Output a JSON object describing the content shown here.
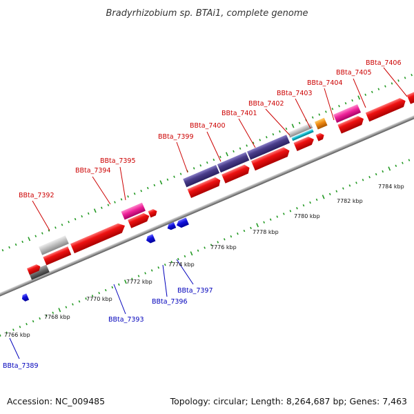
{
  "title": "Bradyrhizobium sp. BTAi1, complete genome",
  "footer": {
    "accession": "Accession: NC_009485",
    "summary": "Topology: circular; Length: 8,264,687 bp; Genes: 7,463"
  },
  "colors": {
    "forward_cds": "#ee1111",
    "reverse_cds": "#1111dd",
    "rna_purple": "#4a3d8a",
    "pseudo_gray": "#b8b8b8",
    "pink": "#ee2299",
    "orange": "#ee8811",
    "cyan": "#11bbcc",
    "label_forward": "#cc0000",
    "label_reverse": "#0000bb",
    "tick_green": "#229922",
    "axis_gray": "#999999"
  },
  "kbp_labels": [
    "7766 kbp",
    "7768 kbp",
    "7770 kbp",
    "7772 kbp",
    "7774 kbp",
    "7776 kbp",
    "7778 kbp",
    "7780 kbp",
    "7782 kbp",
    "7784 kbp"
  ],
  "forward_labels": [
    "BBta_7392",
    "BBta_7394",
    "BBta_7395",
    "BBta_7399",
    "BBta_7400",
    "BBta_7401",
    "BBta_7402",
    "BBta_7403",
    "BBta_7404",
    "BBta_7405",
    "BBta_7406"
  ],
  "reverse_labels": [
    "BBta_7389",
    "BBta_7393",
    "BBta_7396",
    "BBta_7397"
  ]
}
